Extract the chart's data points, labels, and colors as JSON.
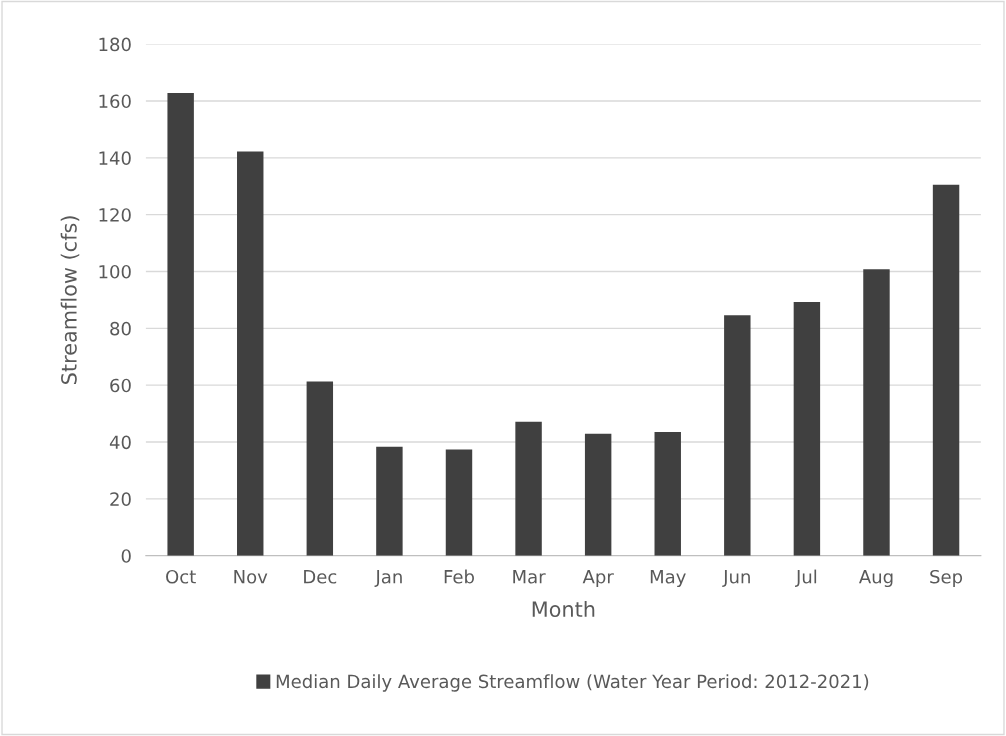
{
  "chart_data": {
    "type": "bar",
    "xlabel": "Month",
    "ylabel": "Streamflow (cfs)",
    "categories": [
      "Oct",
      "Nov",
      "Dec",
      "Jan",
      "Feb",
      "Mar",
      "Apr",
      "May",
      "Jun",
      "Jul",
      "Aug",
      "Sep"
    ],
    "series": [
      {
        "name": "Median Daily Average Streamflow (Water Year Period: 2012-2021)",
        "color": "#404040",
        "values": [
          162.8,
          142.2,
          61.3,
          38.3,
          37.4,
          47.1,
          42.9,
          43.5,
          84.6,
          89.3,
          100.8,
          130.5
        ]
      }
    ],
    "ylim": [
      0,
      180
    ],
    "yticks": [
      0,
      20,
      40,
      60,
      80,
      100,
      120,
      140,
      160,
      180
    ],
    "grid": "y",
    "legend": "bottom"
  }
}
